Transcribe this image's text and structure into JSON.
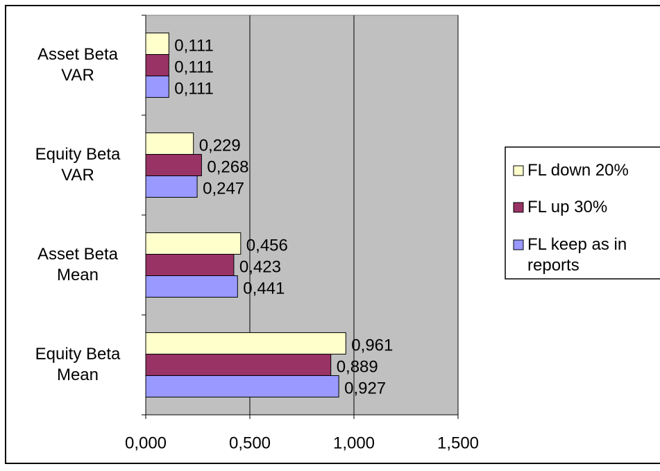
{
  "chart_data": {
    "type": "barh",
    "categories": [
      "Asset Beta VAR",
      "Equity Beta VAR",
      "Asset Beta Mean",
      "Equity Beta Mean"
    ],
    "series": [
      {
        "name": "FL keep as in reports",
        "color": "#9999ff",
        "values": [
          0.111,
          0.247,
          0.441,
          0.927
        ],
        "value_labels": [
          "0,111",
          "0,247",
          "0,441",
          "0,927"
        ]
      },
      {
        "name": "FL up 30%",
        "color": "#993366",
        "values": [
          0.111,
          0.268,
          0.423,
          0.889
        ],
        "value_labels": [
          "0,111",
          "0,268",
          "0,423",
          "0,889"
        ]
      },
      {
        "name": "FL down 20%",
        "color": "#ffffcc",
        "values": [
          0.111,
          0.229,
          0.456,
          0.961
        ],
        "value_labels": [
          "0,111",
          "0,229",
          "0,456",
          "0,961"
        ]
      }
    ],
    "xlim": [
      0,
      1.5
    ],
    "xticks": [
      {
        "value": 0,
        "label": "0,000"
      },
      {
        "value": 0.5,
        "label": "0,500"
      },
      {
        "value": 1,
        "label": "1,000"
      },
      {
        "value": 1.5,
        "label": "1,500"
      }
    ],
    "grid": true,
    "legend": "right",
    "plot_background": "#c0c0c0"
  }
}
